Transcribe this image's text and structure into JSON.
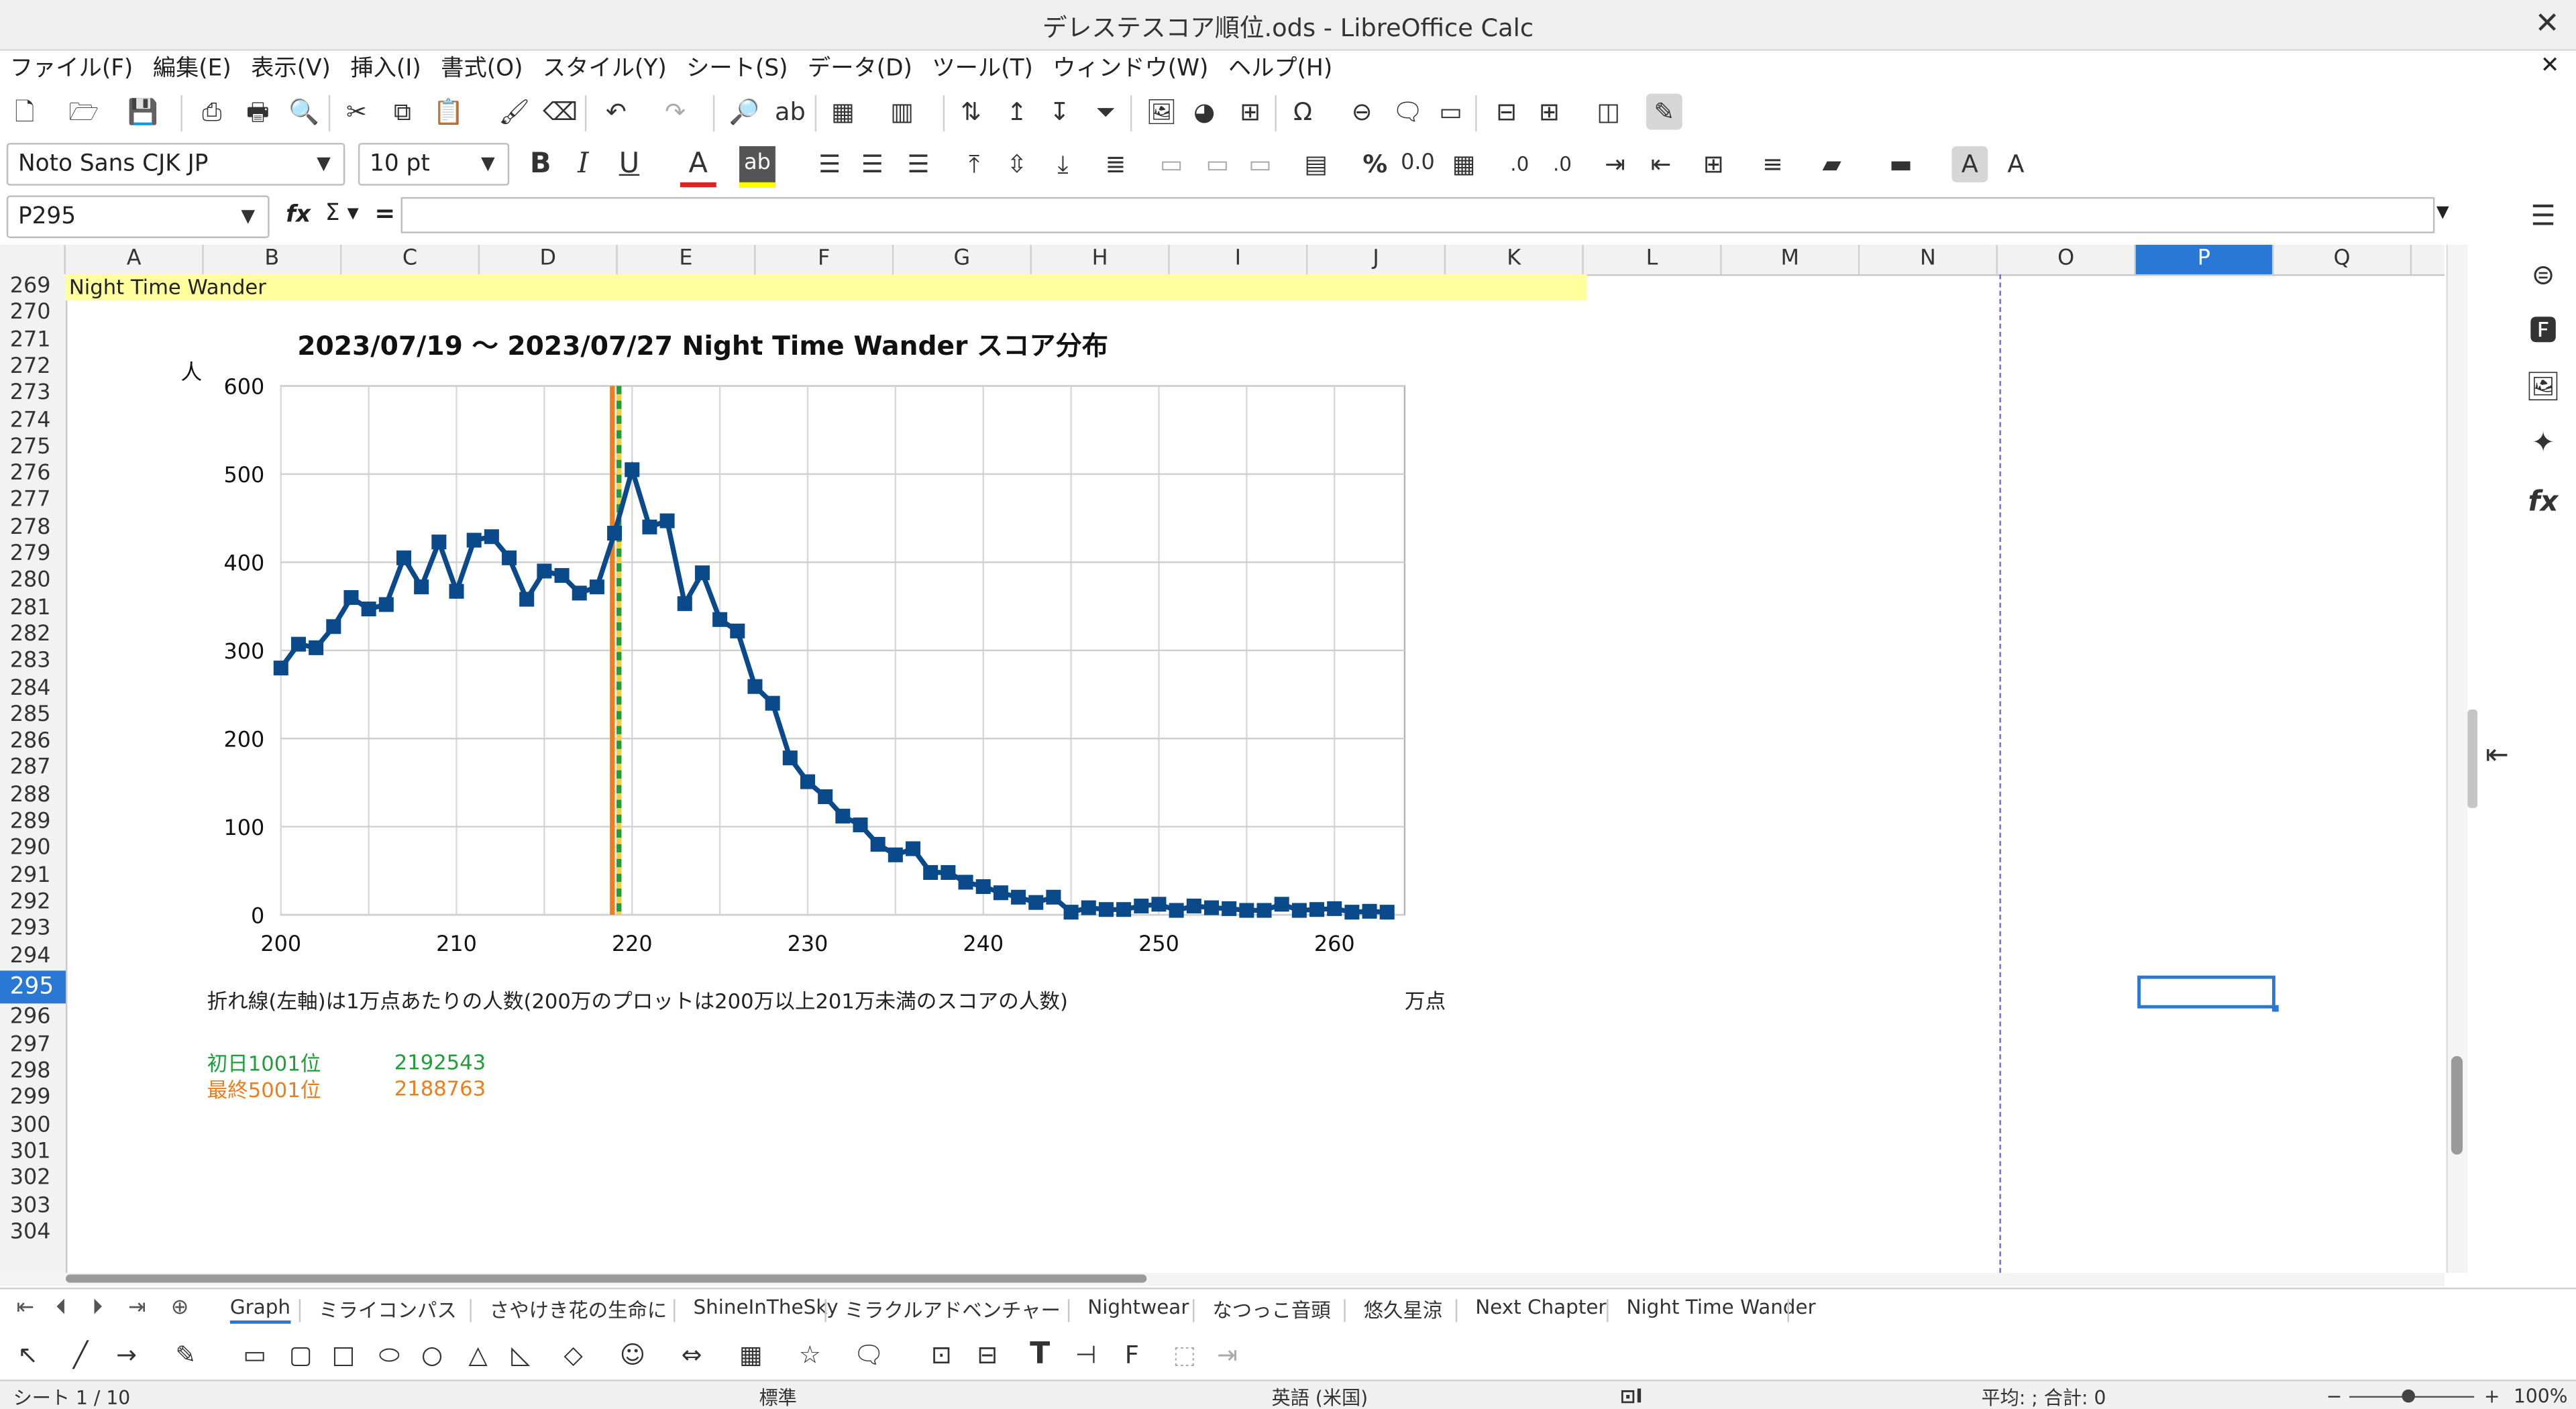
{
  "window": {
    "title": "デレステスコア順位.ods - LibreOffice Calc"
  },
  "menubar": [
    "ファイル(F)",
    "編集(E)",
    "表示(V)",
    "挿入(I)",
    "書式(O)",
    "スタイル(Y)",
    "シート(S)",
    "データ(D)",
    "ツール(T)",
    "ウィンドウ(W)",
    "ヘルプ(H)"
  ],
  "formatting": {
    "font_name": "Noto Sans CJK JP",
    "font_size": "10 pt"
  },
  "formula": {
    "name_box": "P295",
    "content": ""
  },
  "columns": [
    "A",
    "B",
    "C",
    "D",
    "E",
    "F",
    "G",
    "H",
    "I",
    "J",
    "K",
    "L",
    "M",
    "N",
    "O",
    "P",
    "Q"
  ],
  "selected_column": "P",
  "rows": [
    "269",
    "270",
    "271",
    "272",
    "273",
    "274",
    "275",
    "276",
    "277",
    "278",
    "279",
    "280",
    "281",
    "282",
    "283",
    "284",
    "285",
    "286",
    "287",
    "288",
    "289",
    "290",
    "291",
    "292",
    "293",
    "294",
    "295",
    "296",
    "297",
    "298",
    "299",
    "300",
    "301",
    "302",
    "303",
    "304"
  ],
  "selected_row": "295",
  "cells": {
    "a269": "Night Time Wander",
    "note": "折れ線(左軸)は1万点あたりの人数(200万のプロットは200万以上201万未満のスコアの人数)",
    "unit": "万点",
    "first_label": "初日1001位",
    "first_value": "2192543",
    "last_label": "最終5001位",
    "last_value": "2188763"
  },
  "colors": {
    "accent": "#2a78d6",
    "series": "#0b4a8a",
    "first_rank": "#1f9e3a",
    "last_rank": "#f07d19",
    "highlight": "#ffff9e"
  },
  "chart_data": {
    "type": "line",
    "title": "2023/07/19 〜 2023/07/27 Night Time Wander スコア分布",
    "ylabel": "人",
    "xlabel": "",
    "xlim": [
      200,
      264
    ],
    "ylim": [
      0,
      600
    ],
    "xticks": [
      200,
      210,
      220,
      230,
      240,
      250,
      260
    ],
    "yticks": [
      0,
      100,
      200,
      300,
      400,
      500,
      600
    ],
    "grid": true,
    "series": [
      {
        "x": [
          200,
          201,
          202,
          203,
          204,
          205,
          206,
          207,
          208,
          209,
          210,
          211,
          212,
          213,
          214,
          215,
          216,
          217,
          218,
          219,
          220,
          221,
          222,
          223,
          224,
          225,
          226,
          227,
          228,
          229,
          230,
          231,
          232,
          233,
          234,
          235,
          236,
          237,
          238,
          239,
          240,
          241,
          242,
          243,
          244,
          245,
          246,
          247,
          248,
          249,
          250,
          251,
          252,
          253,
          254,
          255,
          256,
          257,
          258,
          259,
          260,
          261,
          262,
          263
        ],
        "values": [
          280,
          307,
          303,
          327,
          360,
          347,
          352,
          405,
          372,
          423,
          367,
          425,
          429,
          405,
          358,
          390,
          385,
          365,
          372,
          433,
          505,
          440,
          447,
          353,
          388,
          335,
          322,
          259,
          240,
          178,
          151,
          134,
          112,
          102,
          80,
          68,
          75,
          48,
          48,
          37,
          32,
          25,
          20,
          14,
          20,
          3,
          8,
          6,
          6,
          10,
          12,
          5,
          10,
          8,
          7,
          5,
          5,
          12,
          5,
          6,
          7,
          3,
          4,
          3
        ]
      }
    ],
    "reference_lines": [
      {
        "label": "初日1001位",
        "x": 219.2543
      },
      {
        "label": "最終5001位",
        "x": 218.8763
      }
    ]
  },
  "sheet_tabs": [
    "Graph",
    "ミライコンパス",
    "さやけき花の生命に",
    "ShineInTheSky",
    "ミラクルアドベンチャー",
    "Nightwear",
    "なつっこ音頭",
    "悠久星涼",
    "Next Chapter",
    "Night Time Wander"
  ],
  "active_tab": "Graph",
  "status": {
    "sheet": "シート 1 / 10",
    "page_style": "標準",
    "language": "英語 (米国)",
    "stats": "平均: ; 合計: 0",
    "zoom": "100%",
    "minus": "−",
    "plus": "+"
  },
  "icons": {
    "close": "✕",
    "menu_close": "✕",
    "tb1": [
      "new-icon",
      "open-icon",
      "save-icon",
      "export-pdf-icon",
      "print-icon",
      "print-preview-icon",
      "cut-icon",
      "copy-icon",
      "paste-icon",
      "clone-icon",
      "clear-icon",
      "undo-icon",
      "redo-icon",
      "find-icon",
      "spellcheck-icon",
      "row-icon",
      "column-icon",
      "sort-icon",
      "sort-asc-icon",
      "sort-desc-icon",
      "autofilter-icon",
      "image-icon",
      "chart-icon",
      "pivot-icon",
      "special-char-icon",
      "hyperlink-icon",
      "comment-icon",
      "header-footer-icon",
      "define-print-area-icon",
      "freeze-icon",
      "split-icon",
      "show-draw-icon"
    ]
  }
}
